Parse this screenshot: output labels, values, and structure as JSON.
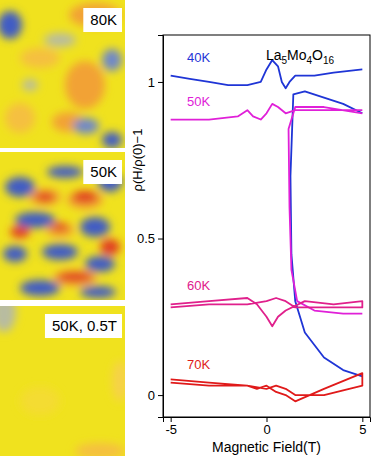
{
  "chart_data": {
    "type": "line",
    "title": "La5Mo4O16",
    "x_label": "Magnetic Field(T)",
    "y_label": "ρ(H/ρ(0)−1",
    "xlim": [
      -5.4,
      5.4
    ],
    "ylim": [
      -0.07,
      1.15
    ],
    "xticks": [
      -5,
      0,
      5
    ],
    "yticks": [
      0,
      0.5,
      1
    ],
    "series": [
      {
        "name": "40K",
        "color": "#1f35d6",
        "x": [
          -5,
          -4,
          -3,
          -2,
          -1,
          -0.3,
          0,
          0.3,
          0.6,
          0.8,
          1.0,
          1.2,
          1.5,
          2.5,
          3.5,
          5,
          5,
          5,
          4,
          3,
          2,
          1.4,
          1.25,
          1.3,
          1.5,
          2,
          3,
          4,
          5
        ],
        "values": [
          1.02,
          1.01,
          1.0,
          0.99,
          0.99,
          1.0,
          1.04,
          1.07,
          1.05,
          1.0,
          0.98,
          1.0,
          1.02,
          1.02,
          1.03,
          1.04,
          null,
          0.9,
          0.93,
          0.95,
          0.97,
          0.96,
          0.7,
          0.45,
          0.3,
          0.2,
          0.12,
          0.08,
          0.06
        ]
      },
      {
        "name": "50K",
        "color": "#e020d8",
        "x": [
          -5,
          -3,
          -1.5,
          -1,
          -0.7,
          -0.3,
          0,
          0.3,
          0.6,
          1,
          1.5,
          3,
          5,
          5,
          5,
          3,
          1.5,
          1.15,
          1.2,
          1.3,
          1.6,
          2.5,
          4,
          5
        ],
        "values": [
          0.88,
          0.88,
          0.89,
          0.91,
          0.89,
          0.88,
          0.9,
          0.93,
          0.92,
          0.9,
          0.91,
          0.91,
          0.91,
          null,
          0.9,
          0.92,
          0.92,
          0.85,
          0.6,
          0.4,
          0.3,
          0.27,
          0.26,
          0.26
        ]
      },
      {
        "name": "60K",
        "color": "#e0208c",
        "x": [
          -5,
          -3,
          -1,
          -0.5,
          0,
          0.3,
          0.6,
          1,
          2,
          3.5,
          5,
          5,
          3,
          1.5,
          1,
          0.5,
          0,
          -1,
          -3,
          -5
        ],
        "values": [
          0.29,
          0.3,
          0.31,
          0.29,
          0.25,
          0.22,
          0.25,
          0.27,
          0.3,
          0.29,
          0.3,
          0.28,
          0.28,
          0.28,
          0.3,
          0.31,
          0.3,
          0.29,
          0.29,
          0.28
        ]
      },
      {
        "name": "70K",
        "color": "#e01a1a",
        "x": [
          -5,
          -3,
          -1,
          -0.5,
          0,
          0.5,
          1,
          1.5,
          3,
          5,
          5,
          3,
          1.5,
          1,
          0.5,
          0,
          -1,
          -3,
          -5
        ],
        "values": [
          0.04,
          0.03,
          0.03,
          0.02,
          0.03,
          0.01,
          0.0,
          -0.02,
          0.02,
          0.07,
          0.03,
          0.0,
          0.0,
          0.02,
          0.03,
          0.02,
          0.03,
          0.04,
          0.05
        ]
      }
    ]
  },
  "panels": [
    {
      "label": "80K"
    },
    {
      "label": "50K"
    },
    {
      "label": "50K, 0.5T"
    }
  ]
}
